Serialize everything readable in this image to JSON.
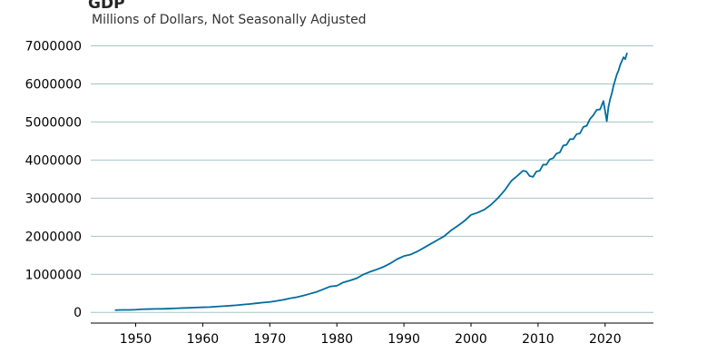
{
  "chart_data": {
    "type": "line",
    "title": "GDP",
    "subtitle": "Millions of Dollars, Not Seasonally Adjusted",
    "xlabel": "",
    "ylabel": "",
    "xlim": [
      1943.3,
      2027.2
    ],
    "ylim": [
      -280000,
      7250000
    ],
    "grid": "horizontal",
    "colors": {
      "line": "#006d9c",
      "grid": "#a6c4c9",
      "axis": "#000000"
    },
    "xticks": [
      1950,
      1960,
      1970,
      1980,
      1990,
      2000,
      2010,
      2020
    ],
    "xtick_labels": [
      "1950",
      "1960",
      "1970",
      "1980",
      "1990",
      "2000",
      "2010",
      "2020"
    ],
    "yticks": [
      0,
      1000000,
      2000000,
      3000000,
      4000000,
      5000000,
      6000000,
      7000000
    ],
    "ytick_labels": [
      "0",
      "1000000",
      "2000000",
      "3000000",
      "4000000",
      "5000000",
      "6000000",
      "7000000"
    ],
    "series": [
      {
        "x": [
          1947.0,
          1948.0,
          1949.0,
          1950.0,
          1951.0,
          1952.0,
          1953.0,
          1954.0,
          1955.0,
          1956.0,
          1957.0,
          1958.0,
          1959.0,
          1960.0,
          1961.0,
          1962.0,
          1963.0,
          1964.0,
          1965.0,
          1966.0,
          1967.0,
          1968.0,
          1969.0,
          1970.0,
          1971.0,
          1972.0,
          1973.0,
          1974.0,
          1975.0,
          1976.0,
          1977.0,
          1978.0,
          1979.0,
          1980.0,
          1981.0,
          1982.0,
          1983.0,
          1984.0,
          1985.0,
          1986.0,
          1987.0,
          1988.0,
          1989.0,
          1990.0,
          1991.0,
          1992.0,
          1993.0,
          1994.0,
          1995.0,
          1996.0,
          1997.0,
          1998.0,
          1999.0,
          2000.0,
          2001.0,
          2002.0,
          2003.0,
          2004.0,
          2005.0,
          2006.0,
          2007.0,
          2007.75,
          2008.25,
          2008.75,
          2009.25,
          2009.75,
          2010.25,
          2010.75,
          2011.25,
          2011.75,
          2012.25,
          2012.75,
          2013.25,
          2013.75,
          2014.25,
          2014.75,
          2015.25,
          2015.75,
          2016.25,
          2016.75,
          2017.25,
          2017.75,
          2018.25,
          2018.75,
          2019.25,
          2019.75,
          2020.25,
          2020.5,
          2020.75,
          2021.0,
          2021.25,
          2021.5,
          2021.75,
          2022.0,
          2022.25,
          2022.5,
          2022.75,
          2023.0,
          2023.25
        ],
        "y": [
          60000,
          65000,
          66000,
          72000,
          83000,
          88000,
          92000,
          94000,
          100000,
          108000,
          115000,
          120000,
          128000,
          135000,
          140000,
          152000,
          163000,
          175000,
          188000,
          205000,
          220000,
          240000,
          260000,
          275000,
          300000,
          330000,
          370000,
          400000,
          440000,
          490000,
          540000,
          610000,
          680000,
          700000,
          790000,
          840000,
          900000,
          1000000,
          1070000,
          1130000,
          1200000,
          1290000,
          1400000,
          1480000,
          1520000,
          1600000,
          1700000,
          1800000,
          1900000,
          2000000,
          2150000,
          2270000,
          2400000,
          2560000,
          2620000,
          2700000,
          2830000,
          3000000,
          3200000,
          3450000,
          3600000,
          3720000,
          3700000,
          3580000,
          3560000,
          3700000,
          3720000,
          3880000,
          3880000,
          4020000,
          4050000,
          4170000,
          4200000,
          4380000,
          4400000,
          4550000,
          4550000,
          4680000,
          4700000,
          4870000,
          4900000,
          5080000,
          5180000,
          5320000,
          5330000,
          5550000,
          5020000,
          5400000,
          5600000,
          5750000,
          5950000,
          6100000,
          6250000,
          6350000,
          6500000,
          6600000,
          6700000,
          6650000,
          6800000
        ]
      }
    ]
  }
}
